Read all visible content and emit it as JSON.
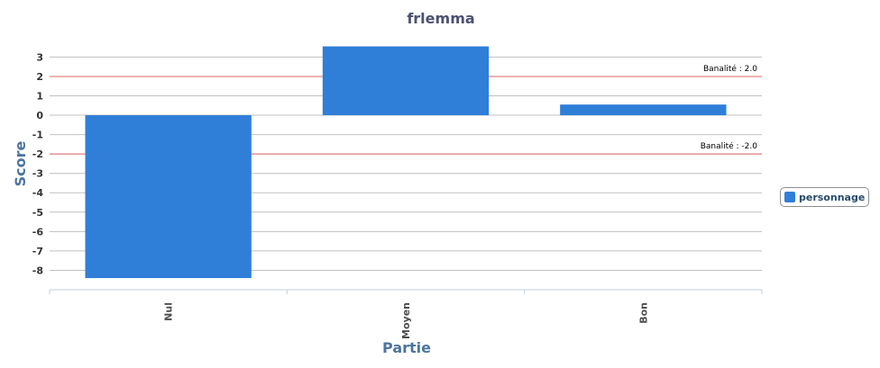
{
  "chart_data": {
    "type": "bar",
    "title": "frlemma",
    "xlabel": "Partie",
    "ylabel": "Score",
    "categories": [
      "Nul",
      "Moyen",
      "Bon"
    ],
    "series": [
      {
        "name": "personnage",
        "color": "#2f7ed8",
        "values": [
          -8.4,
          3.55,
          0.55
        ]
      }
    ],
    "yticks": [
      3,
      2,
      1,
      0,
      -1,
      -2,
      -3,
      -4,
      -5,
      -6,
      -7,
      -8
    ],
    "ylim": [
      -9,
      3.9
    ],
    "grid": true,
    "legend_position": "right",
    "plot_lines": [
      {
        "value": 2,
        "label": "Banalité : 2.0",
        "color": "#e06666"
      },
      {
        "value": -2,
        "label": "Banalité : -2.0",
        "color": "#e06666"
      }
    ]
  }
}
